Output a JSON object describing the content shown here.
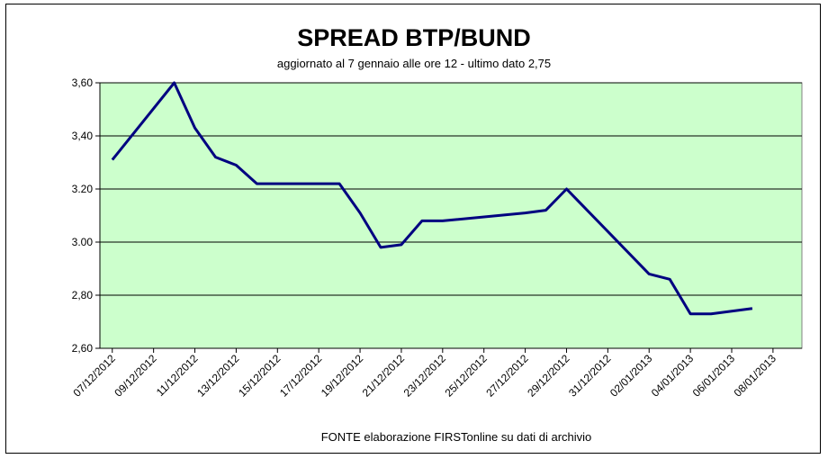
{
  "chart_data": {
    "type": "line",
    "title": "SPREAD  BTP/BUND",
    "subtitle": "aggiornato al 7 gennaio alle ore 12 - ultimo dato 2,75",
    "source": "FONTE elaborazione FIRSTonline su dati di archivio",
    "xlabel": "",
    "ylabel": "",
    "ylim": [
      2.6,
      3.6
    ],
    "y_ticks": [
      "2,60",
      "2,80",
      "3.00",
      "3.20",
      "3,40",
      "3,60"
    ],
    "y_tick_values": [
      2.6,
      2.8,
      3.0,
      3.2,
      3.4,
      3.6
    ],
    "x_tick_labels": [
      "07/12/2012",
      "09/12/2012",
      "11/12/2012",
      "13/12/2012",
      "15/12/2012",
      "17/12/2012",
      "19/12/2012",
      "21/12/2012",
      "23/12/2012",
      "25/12/2012",
      "27/12/2012",
      "29/12/2012",
      "31/12/2012",
      "02/01/2013",
      "04/01/2013",
      "06/01/2013",
      "08/01/2013"
    ],
    "grid": true,
    "plot_background": "#ccffcc",
    "line_color": "#000080",
    "series": [
      {
        "x": [
          "07/12/2012",
          "10/12/2012",
          "11/12/2012",
          "12/12/2012",
          "13/12/2012",
          "14/12/2012",
          "15/12/2012",
          "18/12/2012",
          "19/12/2012",
          "20/12/2012",
          "21/12/2012",
          "22/12/2012",
          "23/12/2012",
          "27/12/2012",
          "28/12/2012",
          "29/12/2012",
          "02/01/2013",
          "03/01/2013",
          "04/01/2013",
          "05/01/2013",
          "07/01/2013"
        ],
        "y": [
          3.31,
          3.6,
          3.43,
          3.32,
          3.29,
          3.22,
          3.22,
          3.22,
          3.11,
          2.98,
          2.99,
          3.08,
          3.08,
          3.11,
          3.12,
          3.2,
          2.88,
          2.86,
          2.73,
          2.73,
          2.75
        ]
      }
    ]
  }
}
